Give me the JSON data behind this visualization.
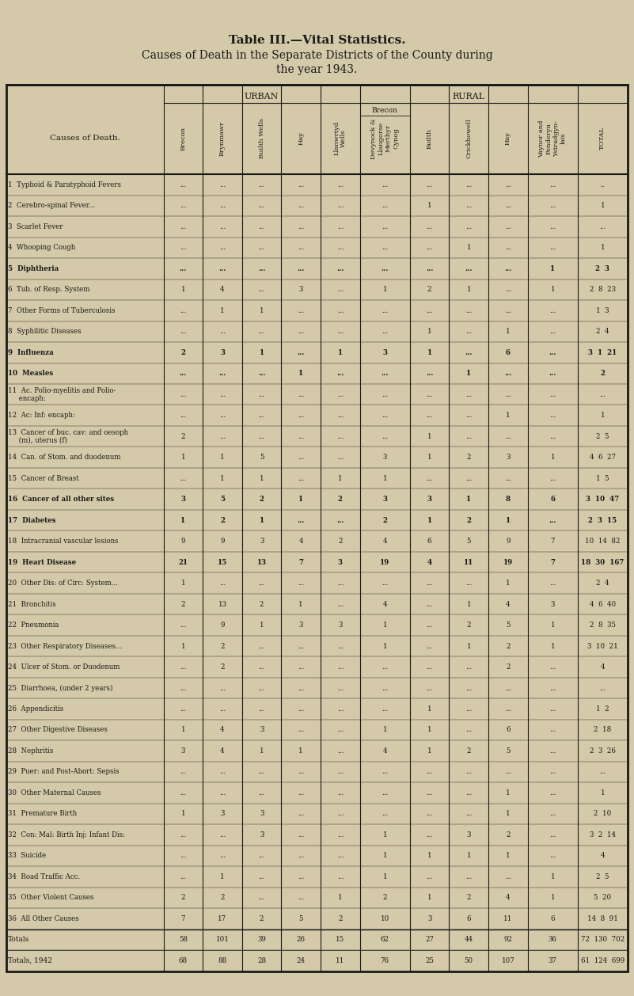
{
  "title1": "Table III.—Vital Statistics.",
  "title2": "Causes of Death in the Separate Districts of the County during",
  "title3": "the year 1943.",
  "urban_header": "URBAN",
  "rural_header": "RURAL",
  "col_headers": [
    "Brecon",
    "Brynmawr",
    "Builth Wells",
    "Hay",
    "Llanwrtyd Wells",
    "Devynock &\nLlangorse\nMerthyr\nCynog",
    "Builth",
    "Crickhowell",
    "Hay",
    "Vaynor and\nPenderyn\nYstradgyn-\nlais",
    "TOTAL"
  ],
  "col_headers_short": [
    "Brecon",
    "Brynmawr",
    "Builth\nWells",
    "Hay",
    "Llanwrtyd\nWells",
    "Devynock &\nLlangorse\nMerthyr\nCynog",
    "Builth",
    "Crickhowell",
    "Hay",
    "Vaynor and\nPenderyn\nYstradgyn-\nlais",
    "TOTAL"
  ],
  "brecon_rural_label": "Brecon",
  "causes": [
    "1  Typhoid & Paratyphoid Fevers",
    "2  Cerebro-spinal Fever...",
    "3  Scarlet Fever",
    "4  Whooping Cough",
    "5  Diphtheria",
    "6  Tub. of Resp. System",
    "7  Other Forms of Tuberculosis",
    "8  Syphilitic Diseases",
    "9  Influenza",
    "10  Measles",
    "11  Ac. Polio-myelitis and Polio-\n     encaph:",
    "12  Ac: Inf: encaph:",
    "13  Cancer of buc. cav: and oesoph\n     (m), uterus (f)",
    "14  Can. of Stom. and duodenum",
    "15  Cancer of Breast",
    "16  Cancer of all other sites",
    "17  Diabetes",
    "18  Intracranial vascular lesions",
    "19  Heart Disease",
    "20  Other Dis: of Circ: System...",
    "21  Bronchitis",
    "22  Pneumonia",
    "23  Other Respiratory Diseases...",
    "24  Ulcer of Stom. or Duodenum",
    "25  Diarrhoea, (under 2 years)",
    "26  Appendicitis",
    "27  Other Digestive Diseases",
    "28  Nephritis",
    "29  Puer: and Post-Abort: Sepsis",
    "30  Other Maternal Causes",
    "31  Premature Birth",
    "32  Con: Mal: Birth Inj: Infant Dis:",
    "33  Suicide",
    "34  Road Traffic Acc.",
    "35  Other Violent Causes",
    "36  All Other Causes"
  ],
  "data": [
    [
      "...",
      "...",
      "...",
      "...",
      "...",
      "...",
      "...",
      "...",
      "...",
      "...",
      ".."
    ],
    [
      "...",
      "...",
      "...",
      "...",
      "...",
      "...",
      "1",
      "...",
      "...",
      "...",
      "1"
    ],
    [
      "...",
      "...",
      "...",
      "...",
      "...",
      "...",
      "...",
      "...",
      "...",
      "...",
      "..."
    ],
    [
      "...",
      "...",
      "...",
      "...",
      "...",
      "...",
      "...",
      "1",
      "...",
      "...",
      "1"
    ],
    [
      "...",
      "...",
      "...",
      "...",
      "...",
      "...",
      "...",
      "...",
      "...",
      "1",
      "2  3"
    ],
    [
      "1",
      "4",
      "...",
      "3",
      "...",
      "1",
      "2",
      "1",
      "...",
      "1",
      "2  8  23"
    ],
    [
      "...",
      "1",
      "1",
      "...",
      "...",
      "...",
      "...",
      "...",
      "...",
      "...",
      "1  3"
    ],
    [
      "...",
      "...",
      "...",
      "...",
      "...",
      "...",
      "1",
      "...",
      "1",
      "...",
      "2  4"
    ],
    [
      "2",
      "3",
      "1",
      "...",
      "1",
      "3",
      "1",
      "...",
      "6",
      "...",
      "3  1  21"
    ],
    [
      "...",
      "...",
      "...",
      "1",
      "...",
      "...",
      "...",
      "1",
      "...",
      "...",
      "2"
    ],
    [
      "...",
      "...",
      "...",
      "...",
      "...",
      "...",
      "...",
      "...",
      "...",
      "...",
      "..."
    ],
    [
      "...",
      "...",
      "...",
      "...",
      "...",
      "...",
      "...",
      "...",
      "1",
      "...",
      "1"
    ],
    [
      "2",
      "...",
      "...",
      "...",
      "...",
      "...",
      "1",
      "...",
      "...",
      "...",
      "2  5"
    ],
    [
      "1",
      "1",
      "5",
      "...",
      "...",
      "3",
      "1",
      "2",
      "3",
      "1",
      "4  6  27"
    ],
    [
      "...",
      "1",
      "1",
      "...",
      "1",
      "1",
      "...",
      "...",
      "...",
      "...",
      "1  5"
    ],
    [
      "3",
      "5",
      "2",
      "1",
      "2",
      "3",
      "3",
      "1",
      "8",
      "6",
      "3  10  47"
    ],
    [
      "1",
      "2",
      "1",
      "...",
      "...",
      "2",
      "1",
      "2",
      "1",
      "...",
      "2  3  15"
    ],
    [
      "9",
      "9",
      "3",
      "4",
      "2",
      "4",
      "6",
      "5",
      "9",
      "7",
      "10  14  82"
    ],
    [
      "21",
      "15",
      "13",
      "7",
      "3",
      "19",
      "4",
      "11",
      "19",
      "7",
      "18  30  167"
    ],
    [
      "1",
      "...",
      "...",
      "...",
      "...",
      "...",
      "...",
      "...",
      "1",
      "...",
      "2  4"
    ],
    [
      "2",
      "13",
      "2",
      "1",
      "...",
      "4",
      "...",
      "1",
      "4",
      "3",
      "4  6  40"
    ],
    [
      "...",
      "9",
      "1",
      "3",
      "3",
      "1",
      "...",
      "2",
      "5",
      "1",
      "2  8  35"
    ],
    [
      "1",
      "2",
      "...",
      "...",
      "...",
      "1",
      "...",
      "1",
      "2",
      "1",
      "3  10  21"
    ],
    [
      "...",
      "2",
      "...",
      "...",
      "...",
      "...",
      "...",
      "...",
      "2",
      "...",
      "4"
    ],
    [
      "...",
      "...",
      "...",
      "...",
      "...",
      "...",
      "...",
      "...",
      "...",
      "...",
      "..."
    ],
    [
      "...",
      "...",
      "...",
      "...",
      "...",
      "...",
      "1",
      "...",
      "...",
      "...",
      "1  2"
    ],
    [
      "1",
      "4",
      "3",
      "...",
      "...",
      "1",
      "1",
      "...",
      "6",
      "...",
      "2  18"
    ],
    [
      "3",
      "4",
      "1",
      "1",
      "...",
      "4",
      "1",
      "2",
      "5",
      "...",
      "2  3  26"
    ],
    [
      "...",
      "...",
      "...",
      "...",
      "...",
      "...",
      "...",
      "...",
      "...",
      "...",
      "..."
    ],
    [
      "...",
      "...",
      "...",
      "...",
      "...",
      "...",
      "...",
      "...",
      "1",
      "...",
      "1"
    ],
    [
      "1",
      "3",
      "3",
      "...",
      "...",
      "...",
      "...",
      "...",
      "1",
      "...",
      "2  10"
    ],
    [
      "...",
      "...",
      "3",
      "...",
      "...",
      "1",
      "...",
      "3",
      "2",
      "...",
      "3  2  14"
    ],
    [
      "...",
      "...",
      "...",
      "...",
      "...",
      "1",
      "1",
      "1",
      "1",
      "...",
      "4"
    ],
    [
      "...",
      "1",
      "...",
      "...",
      "...",
      "1",
      "...",
      "...",
      "...",
      "1",
      "2  5"
    ],
    [
      "2",
      "2",
      "...",
      "...",
      "1",
      "2",
      "1",
      "2",
      "4",
      "1",
      "5  20"
    ],
    [
      "7",
      "17",
      "2",
      "5",
      "2",
      "10",
      "3",
      "6",
      "11",
      "6",
      "14  8  91"
    ]
  ],
  "totals_row": [
    "58",
    "101",
    "39",
    "26",
    "15",
    "62",
    "27",
    "44",
    "92",
    "36",
    "72  130  702"
  ],
  "totals_1942": [
    "68",
    "88",
    "28",
    "24",
    "11",
    "76",
    "25",
    "50",
    "107",
    "37",
    "61  124  699"
  ],
  "bg_color": "#d4c9a8",
  "table_bg": "#cfc4a0",
  "text_color": "#1a1a1a",
  "line_color": "#1a1a1a"
}
